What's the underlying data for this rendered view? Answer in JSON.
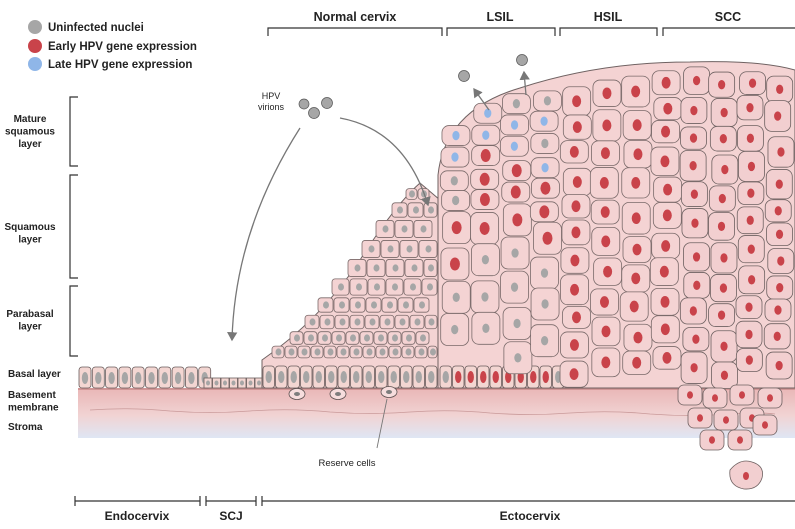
{
  "legend": {
    "items": [
      {
        "label": "Uninfected nuclei",
        "color": "#a6a6a6"
      },
      {
        "label": "Early HPV gene expression",
        "color": "#c9434a"
      },
      {
        "label": "Late HPV gene expression",
        "color": "#8fb6e8"
      }
    ]
  },
  "stages": {
    "normal": "Normal cervix",
    "lsil": "LSIL",
    "hsil": "HSIL",
    "scc": "SCC"
  },
  "layers": {
    "mature": "Mature\nsquamous\nlayer",
    "squamous": "Squamous\nlayer",
    "parabasal": "Parabasal\nlayer",
    "basal": "Basal layer",
    "basement": "Basement\nmembrane",
    "stroma": "Stroma"
  },
  "annotations": {
    "virions": "HPV\nvirions",
    "reserve_cells": "Reserve cells"
  },
  "regions": {
    "endocervix": "Endocervix",
    "scj": "SCJ",
    "ectocervix": "Ectocervix"
  },
  "colors": {
    "cell_fill": "#f4d3d3",
    "stroma": "#e8b9b8",
    "stroma_fade": "#dde4f2",
    "uninfected": "#a6a6a6",
    "early": "#c9434a",
    "late": "#8fb6e8"
  }
}
